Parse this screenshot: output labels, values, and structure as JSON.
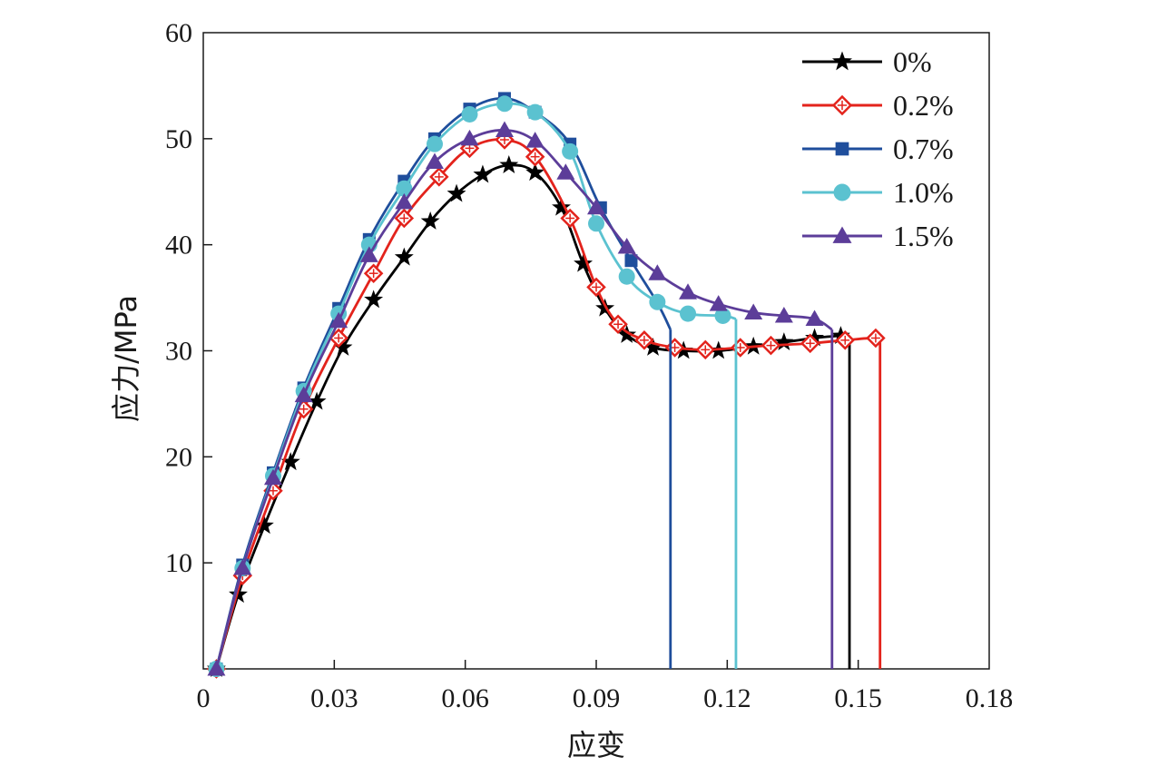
{
  "chart_data": {
    "type": "line",
    "title": "",
    "xlabel": "应变",
    "ylabel": "应力/MPa",
    "xlim": [
      0,
      0.18
    ],
    "ylim": [
      0,
      60
    ],
    "xticks": [
      0,
      0.03,
      0.06,
      0.09,
      0.12,
      0.15,
      0.18
    ],
    "xtick_labels": [
      "0",
      "0.03",
      "0.06",
      "0.09",
      "0.12",
      "0.15",
      "0.18"
    ],
    "yticks": [
      10,
      20,
      30,
      40,
      50,
      60
    ],
    "ytick_labels": [
      "10",
      "20",
      "30",
      "40",
      "50",
      "60"
    ],
    "grid": false,
    "legend_position": "top-right",
    "series": [
      {
        "name": "0%",
        "color": "#000000",
        "marker": "star",
        "x": [
          0.003,
          0.008,
          0.014,
          0.02,
          0.026,
          0.032,
          0.039,
          0.046,
          0.052,
          0.058,
          0.064,
          0.07,
          0.076,
          0.082,
          0.087,
          0.092,
          0.097,
          0.103,
          0.11,
          0.118,
          0.126,
          0.133,
          0.14,
          0.146,
          0.148,
          0.148
        ],
        "y": [
          0,
          7,
          13.5,
          19.5,
          25.2,
          30.3,
          34.8,
          38.8,
          42.2,
          44.8,
          46.6,
          47.5,
          46.8,
          43.5,
          38.2,
          34.0,
          31.5,
          30.3,
          30.0,
          30.0,
          30.4,
          30.8,
          31.2,
          31.4,
          31.2,
          0
        ],
        "marker_x": [
          0.003,
          0.008,
          0.014,
          0.02,
          0.026,
          0.032,
          0.039,
          0.046,
          0.052,
          0.058,
          0.064,
          0.07,
          0.076,
          0.082,
          0.087,
          0.092,
          0.097,
          0.103,
          0.11,
          0.118,
          0.126,
          0.133,
          0.14,
          0.146
        ]
      },
      {
        "name": "0.2%",
        "color": "#e3231c",
        "marker": "diamond",
        "x": [
          0.003,
          0.009,
          0.016,
          0.023,
          0.031,
          0.039,
          0.046,
          0.054,
          0.061,
          0.069,
          0.076,
          0.084,
          0.09,
          0.095,
          0.101,
          0.108,
          0.115,
          0.123,
          0.13,
          0.139,
          0.147,
          0.154,
          0.155,
          0.155
        ],
        "y": [
          0,
          8.8,
          16.8,
          24.5,
          31.2,
          37.3,
          42.5,
          46.4,
          49.1,
          49.9,
          48.3,
          42.5,
          36.0,
          32.5,
          31.0,
          30.3,
          30.1,
          30.3,
          30.5,
          30.7,
          31.0,
          31.2,
          30.8,
          0
        ],
        "marker_x": [
          0.003,
          0.009,
          0.016,
          0.023,
          0.031,
          0.039,
          0.046,
          0.054,
          0.061,
          0.069,
          0.076,
          0.084,
          0.09,
          0.095,
          0.101,
          0.108,
          0.115,
          0.123,
          0.13,
          0.139,
          0.147,
          0.154
        ]
      },
      {
        "name": "0.7%",
        "color": "#1f4e9c",
        "marker": "square",
        "x": [
          0.003,
          0.009,
          0.016,
          0.023,
          0.031,
          0.038,
          0.046,
          0.053,
          0.061,
          0.069,
          0.076,
          0.084,
          0.091,
          0.098,
          0.104,
          0.107,
          0.107
        ],
        "y": [
          0,
          9.8,
          18.5,
          26.5,
          34.0,
          40.5,
          46.0,
          50.0,
          52.8,
          53.8,
          52.5,
          49.5,
          43.5,
          38.5,
          34.5,
          32.0,
          0
        ],
        "marker_x": [
          0.003,
          0.009,
          0.016,
          0.023,
          0.031,
          0.038,
          0.046,
          0.053,
          0.061,
          0.069,
          0.076,
          0.084,
          0.091,
          0.098
        ]
      },
      {
        "name": "1.0%",
        "color": "#5bc2d0",
        "marker": "circle",
        "x": [
          0.003,
          0.009,
          0.016,
          0.023,
          0.031,
          0.038,
          0.046,
          0.053,
          0.061,
          0.069,
          0.076,
          0.084,
          0.09,
          0.097,
          0.104,
          0.111,
          0.119,
          0.122,
          0.122
        ],
        "y": [
          0,
          9.5,
          18.2,
          26.2,
          33.5,
          40.0,
          45.3,
          49.5,
          52.3,
          53.3,
          52.5,
          48.8,
          42.0,
          37.0,
          34.6,
          33.5,
          33.3,
          33.0,
          0
        ],
        "marker_x": [
          0.003,
          0.009,
          0.016,
          0.023,
          0.031,
          0.038,
          0.046,
          0.053,
          0.061,
          0.069,
          0.076,
          0.084,
          0.09,
          0.097,
          0.104,
          0.111,
          0.119
        ]
      },
      {
        "name": "1.5%",
        "color": "#5c3d99",
        "marker": "triangle",
        "x": [
          0.003,
          0.009,
          0.016,
          0.023,
          0.031,
          0.038,
          0.046,
          0.053,
          0.061,
          0.069,
          0.076,
          0.083,
          0.09,
          0.097,
          0.104,
          0.111,
          0.118,
          0.126,
          0.133,
          0.14,
          0.144,
          0.144
        ],
        "y": [
          0,
          9.5,
          18.0,
          25.8,
          32.8,
          39.0,
          44.0,
          47.8,
          50.0,
          50.8,
          49.8,
          46.8,
          43.5,
          39.8,
          37.3,
          35.5,
          34.4,
          33.6,
          33.3,
          33.0,
          32.0,
          0
        ],
        "marker_x": [
          0.003,
          0.009,
          0.016,
          0.023,
          0.031,
          0.038,
          0.046,
          0.053,
          0.061,
          0.069,
          0.076,
          0.083,
          0.09,
          0.097,
          0.104,
          0.111,
          0.118,
          0.126,
          0.133,
          0.14
        ]
      }
    ]
  }
}
